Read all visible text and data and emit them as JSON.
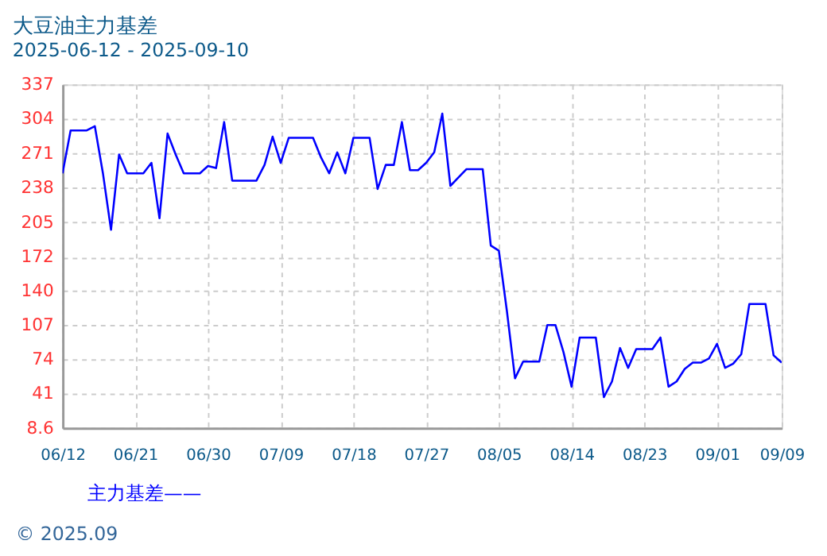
{
  "chart_data": {
    "type": "line",
    "title": "大豆油主力基差",
    "subtitle": "2025-06-12 - 2025-09-10",
    "x": [
      "2025-06-12",
      "2025-06-13",
      "2025-06-14",
      "2025-06-15",
      "2025-06-16",
      "2025-06-17",
      "2025-06-18",
      "2025-06-19",
      "2025-06-20",
      "2025-06-21",
      "2025-06-22",
      "2025-06-23",
      "2025-06-24",
      "2025-06-25",
      "2025-06-26",
      "2025-06-27",
      "2025-06-28",
      "2025-06-29",
      "2025-06-30",
      "2025-07-01",
      "2025-07-02",
      "2025-07-03",
      "2025-07-04",
      "2025-07-05",
      "2025-07-06",
      "2025-07-07",
      "2025-07-08",
      "2025-07-09",
      "2025-07-10",
      "2025-07-11",
      "2025-07-12",
      "2025-07-13",
      "2025-07-14",
      "2025-07-15",
      "2025-07-16",
      "2025-07-17",
      "2025-07-18",
      "2025-07-19",
      "2025-07-20",
      "2025-07-21",
      "2025-07-22",
      "2025-07-23",
      "2025-07-24",
      "2025-07-25",
      "2025-07-26",
      "2025-07-27",
      "2025-07-28",
      "2025-07-29",
      "2025-07-30",
      "2025-07-31",
      "2025-08-01",
      "2025-08-02",
      "2025-08-03",
      "2025-08-04",
      "2025-08-05",
      "2025-08-06",
      "2025-08-07",
      "2025-08-08",
      "2025-08-09",
      "2025-08-10",
      "2025-08-11",
      "2025-08-12",
      "2025-08-13",
      "2025-08-14",
      "2025-08-15",
      "2025-08-16",
      "2025-08-17",
      "2025-08-18",
      "2025-08-19",
      "2025-08-20",
      "2025-08-21",
      "2025-08-22",
      "2025-08-23",
      "2025-08-24",
      "2025-08-25",
      "2025-08-26",
      "2025-08-27",
      "2025-08-28",
      "2025-08-29",
      "2025-08-30",
      "2025-08-31",
      "2025-09-01",
      "2025-09-02",
      "2025-09-03",
      "2025-09-04",
      "2025-09-05",
      "2025-09-06",
      "2025-09-07",
      "2025-09-08",
      "2025-09-09"
    ],
    "series": [
      {
        "name": "主力基差——",
        "color": "#0000ff",
        "values": [
          252,
          293,
          293,
          293,
          297,
          252,
          198,
          270,
          252,
          252,
          252,
          262,
          209,
          290,
          270,
          252,
          252,
          252,
          259,
          257,
          301,
          245,
          245,
          245,
          245,
          260,
          287,
          262,
          286,
          286,
          286,
          286,
          267,
          252,
          272,
          252,
          286,
          286,
          286,
          237,
          260,
          260,
          301,
          255,
          255,
          262,
          272,
          309,
          240,
          248,
          256,
          256,
          256,
          183,
          178,
          120,
          56,
          72,
          72,
          72,
          107,
          107,
          81,
          48,
          95,
          95,
          95,
          38,
          53,
          85,
          66,
          84,
          84,
          84,
          95,
          48,
          53,
          65,
          71,
          71,
          75,
          89,
          66,
          70,
          79,
          127,
          127,
          127,
          78,
          71
        ]
      }
    ],
    "xlim": [
      "2025-06-12",
      "2025-09-09"
    ],
    "xticks": [
      {
        "value": "2025-06-12",
        "label": "06/12"
      },
      {
        "value": "2025-06-21",
        "label": "06/21"
      },
      {
        "value": "2025-06-30",
        "label": "06/30"
      },
      {
        "value": "2025-07-09",
        "label": "07/09"
      },
      {
        "value": "2025-07-18",
        "label": "07/18"
      },
      {
        "value": "2025-07-27",
        "label": "07/27"
      },
      {
        "value": "2025-08-05",
        "label": "08/05"
      },
      {
        "value": "2025-08-14",
        "label": "08/14"
      },
      {
        "value": "2025-08-23",
        "label": "08/23"
      },
      {
        "value": "2025-09-01",
        "label": "09/01"
      },
      {
        "value": "2025-09-09",
        "label": "09/09"
      }
    ],
    "ylim": [
      8.6,
      337
    ],
    "yticks": [
      8.6,
      {
        "value": 41.44,
        "label": "41"
      },
      {
        "value": 74.28,
        "label": "74"
      },
      {
        "value": 107.12,
        "label": "107"
      },
      {
        "value": 139.96,
        "label": "140"
      },
      172,
      205,
      {
        "value": 238.48,
        "label": "238"
      },
      {
        "value": 271.32,
        "label": "271"
      },
      {
        "value": 304.16,
        "label": "304"
      },
      337
    ],
    "grid": true,
    "legend": "bottom",
    "line_style": "solid",
    "annotations": [
      "© 2025.09"
    ]
  }
}
